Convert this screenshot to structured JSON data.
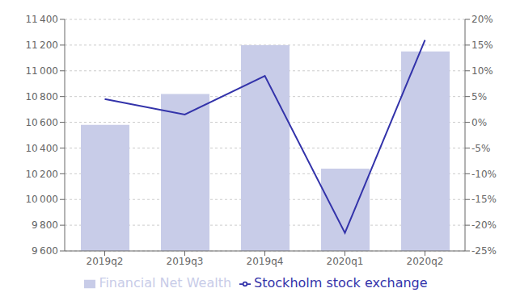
{
  "chart_data": {
    "type": "bar",
    "categories": [
      "2019q2",
      "2019q3",
      "2019q4",
      "2020q1",
      "2020q2"
    ],
    "series": [
      {
        "name": "Financial Net Wealth",
        "type": "bar",
        "color": "#c8cce8",
        "values": [
          10580,
          10820,
          11200,
          10240,
          11150
        ]
      },
      {
        "name": "Stockholm stock exchange",
        "type": "line",
        "color": "#3333aa",
        "axis": "y2",
        "values": [
          4.5,
          1.5,
          9.0,
          -21.5,
          16.0
        ]
      }
    ],
    "ylim": [
      9600,
      11400
    ],
    "yticks": [
      {
        "value": 9600,
        "label": "9 600"
      },
      {
        "value": 9800,
        "label": "9 800"
      },
      {
        "value": 10000,
        "label": "10 000"
      },
      {
        "value": 10200,
        "label": "10 200"
      },
      {
        "value": 10400,
        "label": "10 400"
      },
      {
        "value": 10600,
        "label": "10 600"
      },
      {
        "value": 10800,
        "label": "10 800"
      },
      {
        "value": 11000,
        "label": "11 000"
      },
      {
        "value": 11200,
        "label": "11 200"
      },
      {
        "value": 11400,
        "label": "11 400"
      }
    ],
    "y2lim": [
      -25,
      20
    ],
    "y2ticks": [
      {
        "value": -25,
        "label": "-25%"
      },
      {
        "value": -20,
        "label": "-20%"
      },
      {
        "value": -15,
        "label": "-15%"
      },
      {
        "value": -10,
        "label": "-10%"
      },
      {
        "value": -5,
        "label": "-5%"
      },
      {
        "value": 0,
        "label": "0%"
      },
      {
        "value": 5,
        "label": "5%"
      },
      {
        "value": 10,
        "label": "10%"
      },
      {
        "value": 15,
        "label": "15%"
      },
      {
        "value": 20,
        "label": "20%"
      }
    ],
    "grid": true,
    "legend": "bottom"
  }
}
